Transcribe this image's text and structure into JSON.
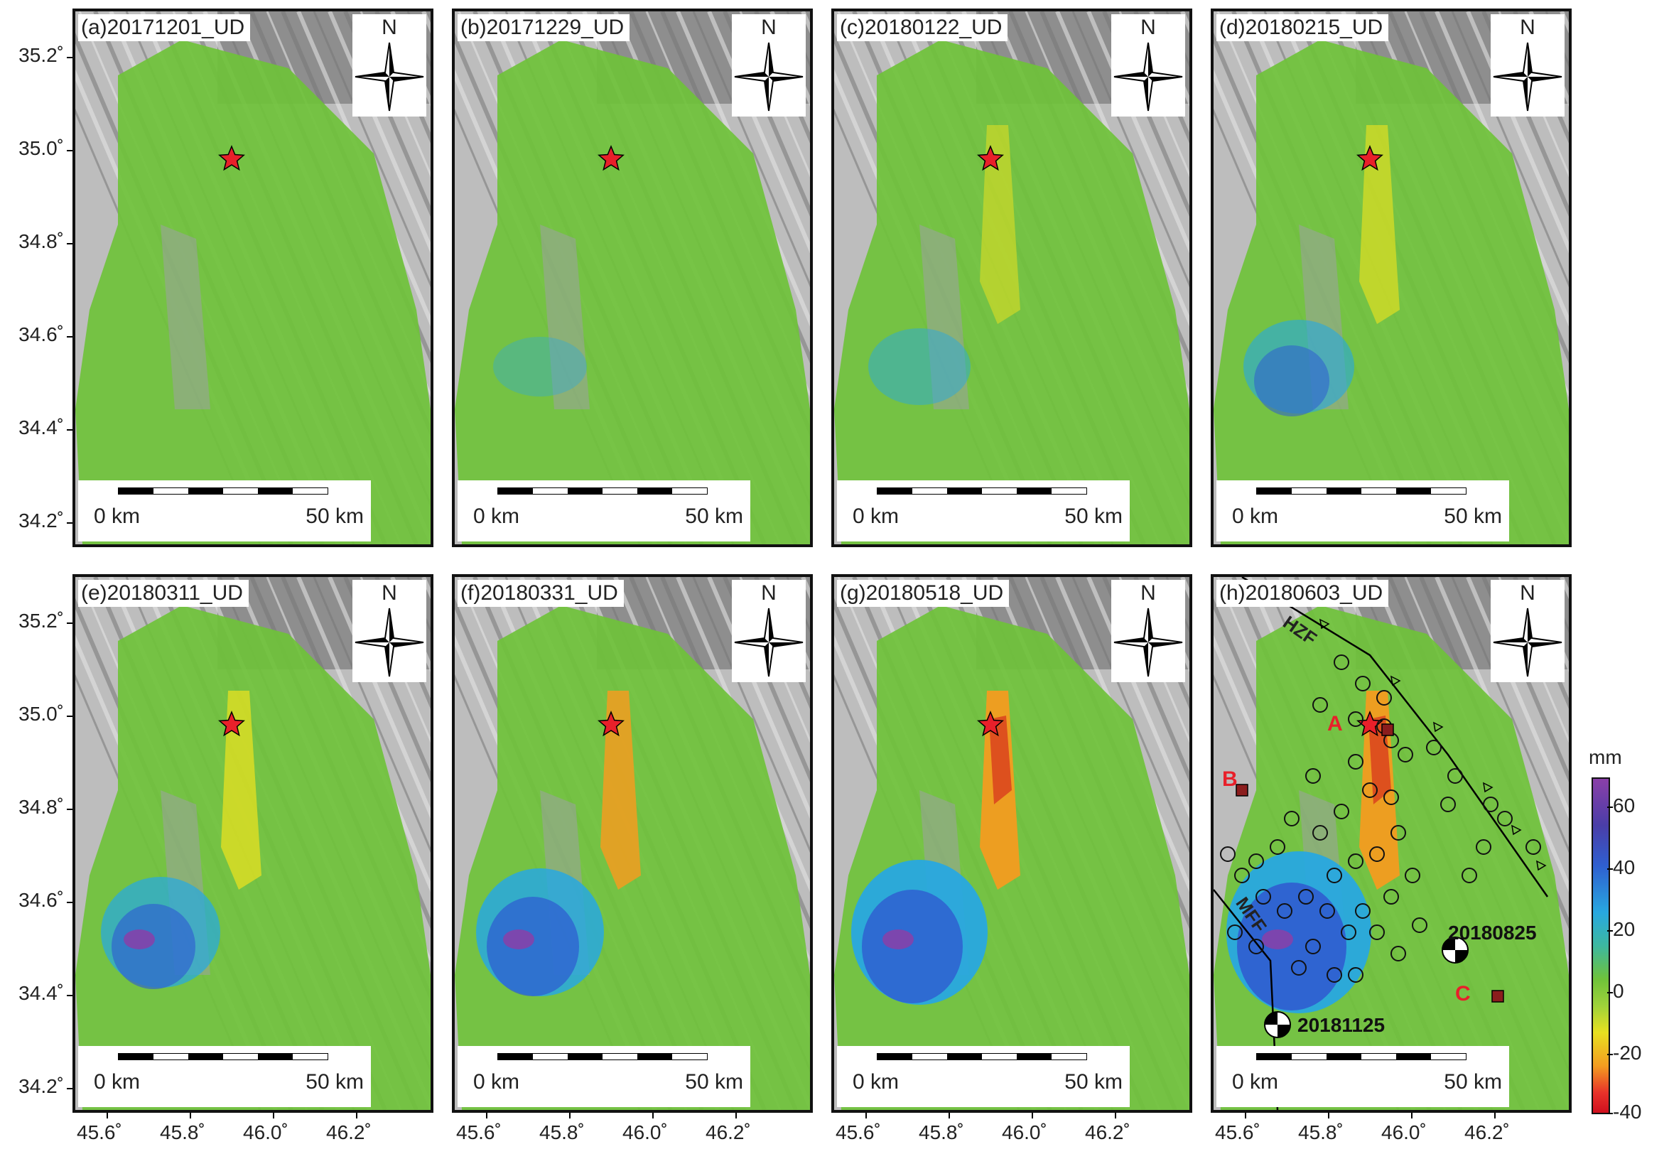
{
  "panels": [
    {
      "title": "(a)20171201_UD",
      "stage": 0
    },
    {
      "title": "(b)20171229_UD",
      "stage": 1
    },
    {
      "title": "(c)20180122_UD",
      "stage": 2
    },
    {
      "title": "(d)20180215_UD",
      "stage": 3
    },
    {
      "title": "(e)20180311_UD",
      "stage": 4
    },
    {
      "title": "(f)20180331_UD",
      "stage": 5
    },
    {
      "title": "(g)20180518_UD",
      "stage": 6
    },
    {
      "title": "(h)20180603_UD",
      "stage": 7
    }
  ],
  "compass_label": "N",
  "scale": {
    "start": "0 km",
    "end": "50 km"
  },
  "y_ticks": [
    "35.2˚",
    "35.0˚",
    "34.8˚",
    "34.6˚",
    "34.4˚",
    "34.2˚"
  ],
  "x_ticks": [
    "45.6˚",
    "45.8˚",
    "46.0˚",
    "46.2˚"
  ],
  "colorbar": {
    "unit": "mm",
    "ticks": [
      "60",
      "40",
      "20",
      "0",
      "-20",
      "-40"
    ],
    "colors": [
      "#8a3fa8",
      "#2f5fd0",
      "#28a8e0",
      "#6fc23a",
      "#e8e020",
      "#f39c20",
      "#d0101e"
    ]
  },
  "annotations": {
    "faults": [
      "HZF",
      "MFF"
    ],
    "sites": [
      "A",
      "B",
      "C"
    ],
    "events": [
      "20180825",
      "20181125"
    ]
  }
}
